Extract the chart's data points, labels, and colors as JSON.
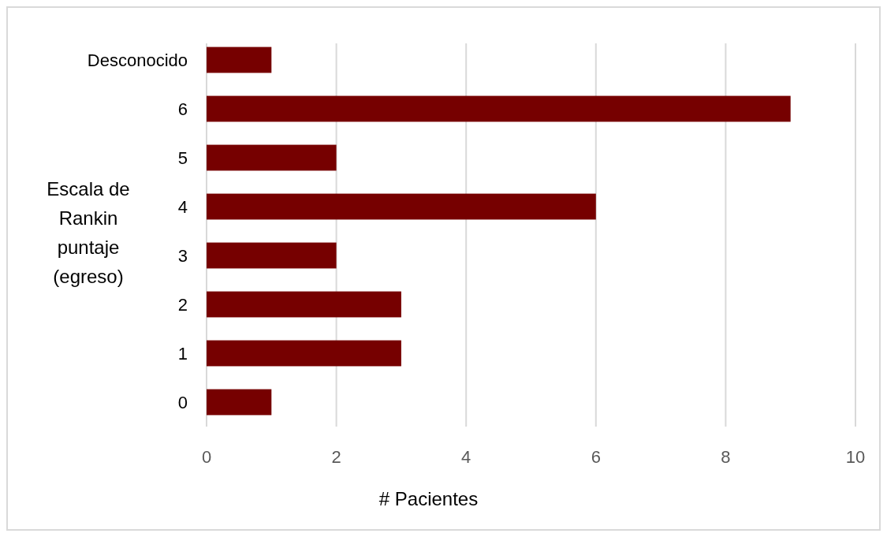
{
  "chart_data": {
    "type": "bar",
    "orientation": "horizontal",
    "xlabel": "# Pacientes",
    "ylabel": "Escala de Rankin puntaje (egreso)",
    "categories": [
      "Desconocido",
      "6",
      "5",
      "4",
      "3",
      "2",
      "1",
      "0"
    ],
    "values": [
      1,
      9,
      2,
      6,
      2,
      3,
      3,
      1
    ],
    "color": "#760000",
    "xlim": [
      0,
      10
    ],
    "xticks": [
      0,
      2,
      4,
      6,
      8,
      10
    ],
    "grid": "x"
  }
}
